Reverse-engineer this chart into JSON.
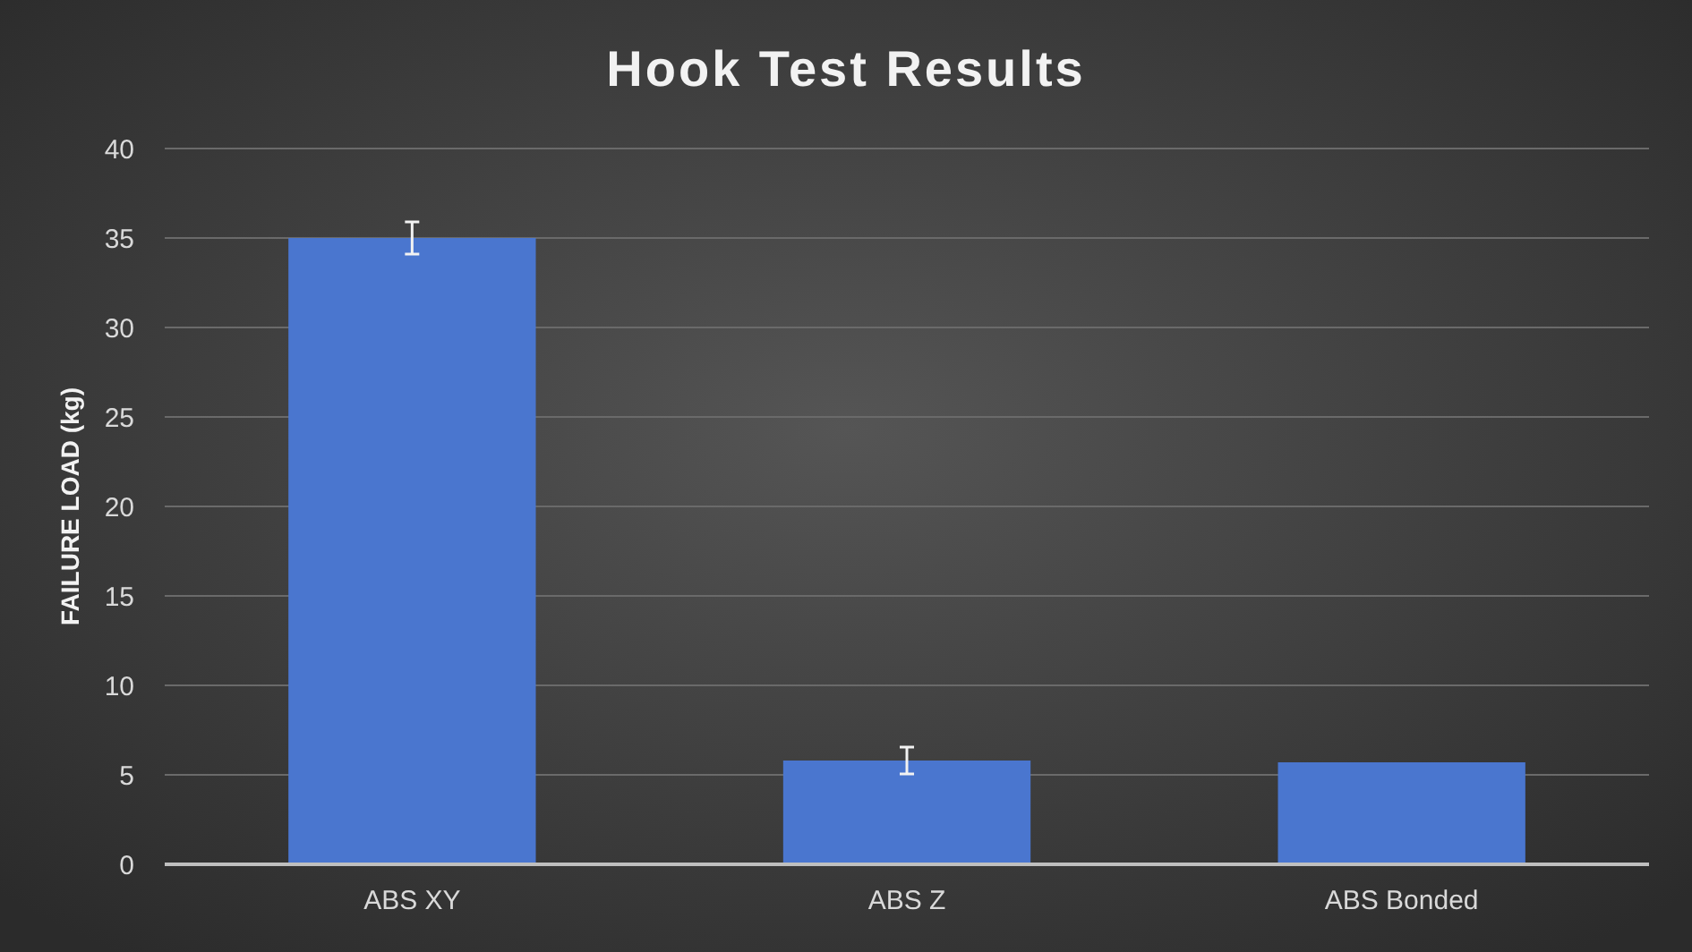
{
  "chart_data": {
    "type": "bar",
    "title": "Hook Test Results",
    "ylabel": "FAILURE LOAD (kg)",
    "categories": [
      "ABS XY",
      "ABS Z",
      "ABS Bonded"
    ],
    "values": [
      35,
      5.8,
      5.7
    ],
    "errors": [
      0.9,
      0.75,
      null
    ],
    "color": "#4a76cf",
    "ylim": [
      0,
      40
    ],
    "yticks": [
      0,
      5,
      10,
      15,
      20,
      25,
      30,
      35,
      40
    ],
    "grid": "y"
  }
}
